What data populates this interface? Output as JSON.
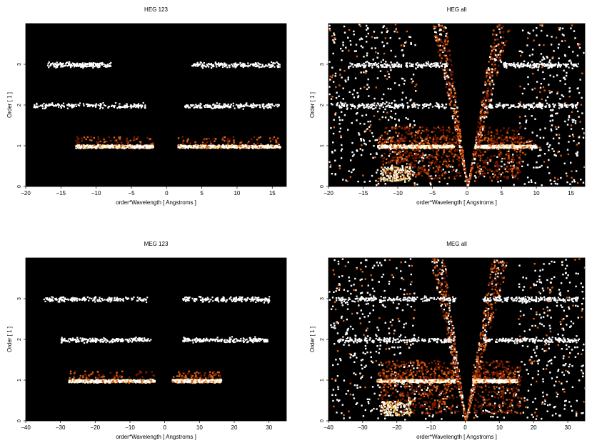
{
  "colors": {
    "background": "#000000",
    "pixel_cold": "#7a1a00",
    "pixel_mid": "#e06010",
    "pixel_hot": "#ffffff"
  },
  "chart_data": [
    {
      "type": "heatmap",
      "title": "HEG 123",
      "xlabel": "order*Wavelength [ Angstroms ]",
      "ylabel": "Order [ 1 ]",
      "xlim": [
        -20,
        17
      ],
      "ylim": [
        0,
        4
      ],
      "xticks": [
        -20,
        -15,
        -10,
        -5,
        0,
        5,
        10,
        15
      ],
      "xtick_labels": [
        "−20",
        "−15",
        "−10",
        "−5",
        "0",
        "5",
        "10",
        "15"
      ],
      "yticks": [
        0,
        1,
        2,
        3
      ],
      "grid": false,
      "bands": [
        {
          "order": 1,
          "x_ranges": [
            [
              -13,
              -2
            ],
            [
              1.5,
              16
            ]
          ],
          "peak_x": [
            -6,
            7
          ],
          "intensity": "high"
        },
        {
          "order": 2,
          "x_ranges": [
            [
              -19,
              -3
            ],
            [
              2.5,
              16
            ]
          ],
          "intensity": "low"
        },
        {
          "order": 3,
          "x_ranges": [
            [
              -17,
              -8
            ],
            [
              3.5,
              16
            ]
          ],
          "intensity": "low"
        }
      ],
      "wedges": false
    },
    {
      "type": "heatmap",
      "title": "HEG all",
      "xlabel": "order*Wavelength [ Angstroms ]",
      "ylabel": "Order [ 1 ]",
      "xlim": [
        -20,
        17
      ],
      "ylim": [
        0,
        4
      ],
      "xticks": [
        -20,
        -15,
        -10,
        -5,
        0,
        5,
        10,
        15
      ],
      "xtick_labels": [
        "−20",
        "−15",
        "−10",
        "−5",
        "0",
        "5",
        "10",
        "15"
      ],
      "yticks": [
        0,
        1,
        2,
        3
      ],
      "grid": false,
      "bands": [
        {
          "order": 1,
          "x_ranges": [
            [
              -13,
              -2
            ],
            [
              1,
              10
            ]
          ],
          "intensity": "high"
        },
        {
          "order": 2,
          "x_ranges": [
            [
              -19,
              -3
            ],
            [
              3,
              16
            ]
          ],
          "intensity": "low"
        },
        {
          "order": 3,
          "x_ranges": [
            [
              -17,
              -3
            ],
            [
              5,
              16
            ]
          ],
          "intensity": "low"
        }
      ],
      "wedges": true
    },
    {
      "type": "heatmap",
      "title": "MEG 123",
      "xlabel": "order*Wavelength [ Angstroms ]",
      "ylabel": "Order [ 1 ]",
      "xlim": [
        -40,
        35
      ],
      "ylim": [
        0,
        4
      ],
      "xticks": [
        -40,
        -30,
        -20,
        -10,
        0,
        10,
        20,
        30
      ],
      "xtick_labels": [
        "−40",
        "−30",
        "−20",
        "−10",
        "0",
        "10",
        "20",
        "30"
      ],
      "yticks": [
        0,
        1,
        2,
        3
      ],
      "grid": false,
      "bands": [
        {
          "order": 1,
          "x_ranges": [
            [
              -28,
              -3
            ],
            [
              2,
              16
            ]
          ],
          "peak_x": [
            -10,
            10
          ],
          "intensity": "high"
        },
        {
          "order": 2,
          "x_ranges": [
            [
              -30,
              -4
            ],
            [
              5,
              30
            ]
          ],
          "intensity": "low"
        },
        {
          "order": 3,
          "x_ranges": [
            [
              -35,
              -5
            ],
            [
              5,
              30
            ]
          ],
          "intensity": "low"
        }
      ],
      "wedges": false
    },
    {
      "type": "heatmap",
      "title": "MEG all",
      "xlabel": "order*Wavelength [ Angstroms ]",
      "ylabel": "Order [ 1 ]",
      "xlim": [
        -40,
        35
      ],
      "ylim": [
        0,
        4
      ],
      "xticks": [
        -40,
        -30,
        -20,
        -10,
        0,
        10,
        20,
        30
      ],
      "xtick_labels": [
        "−40",
        "−30",
        "−20",
        "−10",
        "0",
        "10",
        "20",
        "30"
      ],
      "yticks": [
        0,
        1,
        2,
        3
      ],
      "grid": false,
      "bands": [
        {
          "order": 1,
          "x_ranges": [
            [
              -26,
              -3
            ],
            [
              2,
              15
            ]
          ],
          "intensity": "high"
        },
        {
          "order": 2,
          "x_ranges": [
            [
              -38,
              -3
            ],
            [
              5,
              33
            ]
          ],
          "intensity": "low"
        },
        {
          "order": 3,
          "x_ranges": [
            [
              -38,
              -3
            ],
            [
              5,
              33
            ]
          ],
          "intensity": "low"
        }
      ],
      "wedges": true
    }
  ]
}
